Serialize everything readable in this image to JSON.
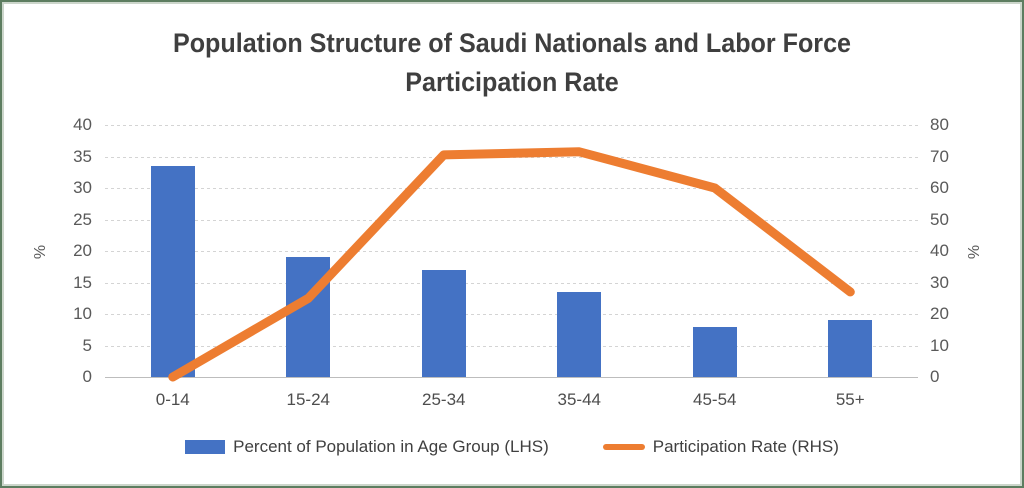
{
  "title": {
    "line1": "Population Structure of Saudi Nationals and Labor Force",
    "line2": "Participation Rate"
  },
  "chart_data": {
    "type": "combo-bar-line",
    "title": "Population Structure of Saudi Nationals and Labor Force Participation Rate",
    "categories": [
      "0-14",
      "15-24",
      "25-34",
      "35-44",
      "45-54",
      "55+"
    ],
    "series": [
      {
        "name": "Percent of Population in Age Group (LHS)",
        "type": "bar",
        "axis": "left",
        "values": [
          33.5,
          19,
          17,
          13.5,
          8,
          9
        ],
        "color": "#4472C4"
      },
      {
        "name": "Participation Rate (RHS)",
        "type": "line",
        "axis": "right",
        "values": [
          0,
          25,
          70.5,
          71.5,
          60,
          27
        ],
        "color": "#ED7D31"
      }
    ],
    "left_axis": {
      "label": "%",
      "min": 0,
      "max": 40,
      "step": 5,
      "ticks": [
        "0",
        "5",
        "10",
        "15",
        "20",
        "25",
        "30",
        "35",
        "40"
      ]
    },
    "right_axis": {
      "label": "%",
      "min": 0,
      "max": 80,
      "step": 10,
      "ticks": [
        "0",
        "10",
        "20",
        "30",
        "40",
        "50",
        "60",
        "70",
        "80"
      ]
    },
    "grid": true,
    "legend_position": "bottom",
    "frame_border_color": "#5d7d60"
  }
}
